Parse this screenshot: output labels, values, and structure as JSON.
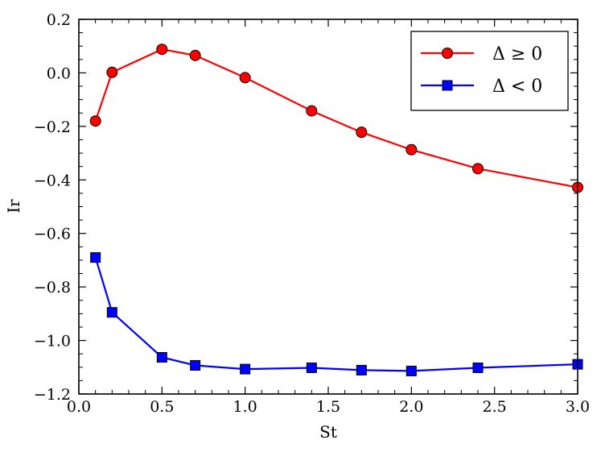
{
  "chart_data": {
    "type": "line",
    "title": "",
    "xlabel": "St",
    "ylabel": "Ir",
    "xlim": [
      0.0,
      3.0
    ],
    "ylim": [
      -1.2,
      0.2
    ],
    "x_ticks": [
      0.0,
      0.5,
      1.0,
      1.5,
      2.0,
      2.5,
      3.0
    ],
    "x_tick_labels": [
      "0.0",
      "0.5",
      "1.0",
      "1.5",
      "2.0",
      "2.5",
      "3.0"
    ],
    "y_ticks": [
      0.2,
      0.0,
      -0.2,
      -0.4,
      -0.6,
      -0.8,
      -1.0,
      -1.2
    ],
    "y_tick_labels": [
      "0.2",
      "0.0",
      "−0.2",
      "−0.4",
      "−0.6",
      "−0.8",
      "−1.0",
      "−1.2"
    ],
    "grid": false,
    "legend_position": "top-right",
    "series": [
      {
        "name": "Δ ≥ 0",
        "color": "#ff0000",
        "marker": "circle",
        "x": [
          0.1,
          0.2,
          0.5,
          0.7,
          1.0,
          1.4,
          1.7,
          2.0,
          2.4,
          3.0
        ],
        "y": [
          -0.18,
          0.002,
          0.088,
          0.065,
          -0.018,
          -0.142,
          -0.222,
          -0.287,
          -0.358,
          -0.428
        ]
      },
      {
        "name": "Δ < 0",
        "color": "#0000ff",
        "marker": "square",
        "x": [
          0.1,
          0.2,
          0.5,
          0.7,
          1.0,
          1.4,
          1.7,
          2.0,
          2.4,
          3.0
        ],
        "y": [
          -0.69,
          -0.895,
          -1.063,
          -1.093,
          -1.107,
          -1.102,
          -1.111,
          -1.114,
          -1.102,
          -1.089
        ]
      }
    ]
  }
}
